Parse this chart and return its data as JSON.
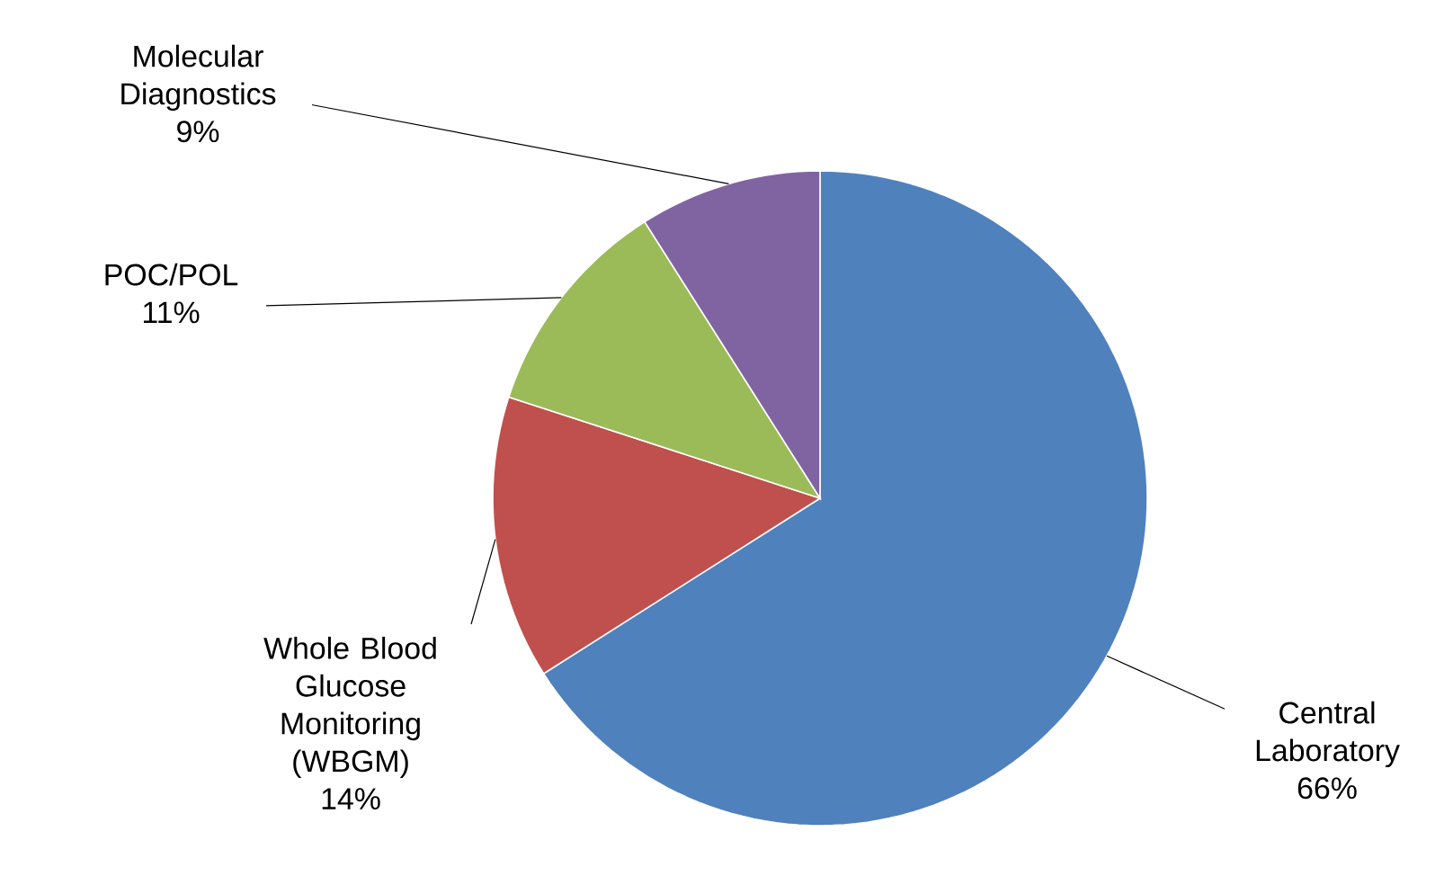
{
  "chart_data": {
    "type": "pie",
    "categories": [
      "Central Laboratory",
      "Whole Blood Glucose Monitoring (WBGM)",
      "POC/POL",
      "Molecular Diagnostics"
    ],
    "values": [
      66,
      14,
      11,
      9
    ],
    "value_labels": [
      "66%",
      "14%",
      "11%",
      "9%"
    ],
    "colors": [
      "#4f81bd",
      "#c0504d",
      "#9bbb59",
      "#8064a2"
    ]
  }
}
